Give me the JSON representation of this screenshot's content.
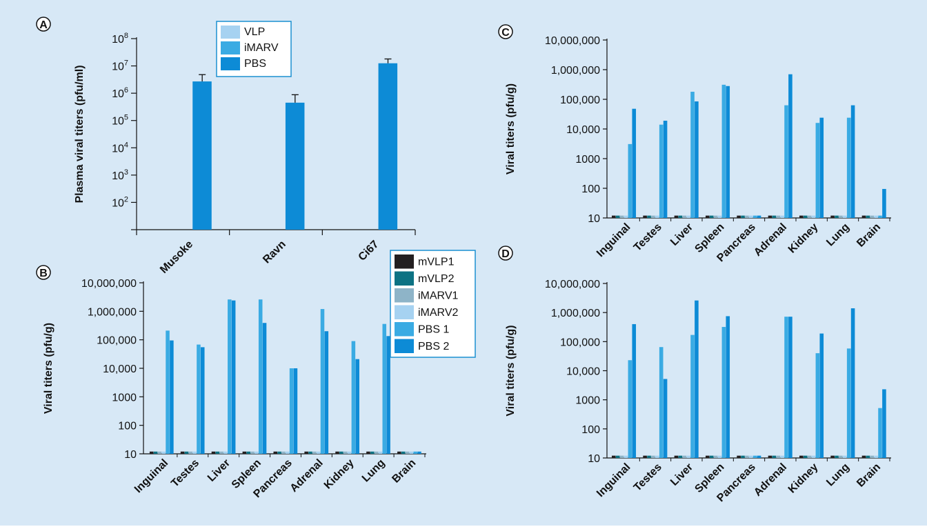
{
  "colors": {
    "background": "#d7e8f6",
    "mVLP1": "#231f20",
    "mVLP2": "#0d7283",
    "iMARV1": "#8eb4c8",
    "iMARV2": "#a6d2f1",
    "PBS 1": "#3aabe3",
    "PBS 2": "#0d8bd6",
    "VLP": "#a6d2f1",
    "iMARV": "#3aabe3",
    "PBS": "#0d8bd6"
  },
  "chart_data": [
    {
      "panel": "A",
      "type": "bar",
      "ylabel": "Plasma viral titers (pfu/ml)",
      "xlabel": "",
      "yscale": "log",
      "ylim": [
        10,
        100000000
      ],
      "yticks": [
        {
          "exp": "2",
          "value": 100
        },
        {
          "exp": "3",
          "value": 1000
        },
        {
          "exp": "4",
          "value": 10000
        },
        {
          "exp": "5",
          "value": 100000
        },
        {
          "exp": "6",
          "value": 1000000
        },
        {
          "exp": "7",
          "value": 10000000
        },
        {
          "exp": "8",
          "value": 100000000
        }
      ],
      "tick_base": "10",
      "categories": [
        "Musoke",
        "Ravn",
        "Ci67"
      ],
      "legend": [
        "VLP",
        "iMARV",
        "PBS"
      ],
      "series": [
        {
          "name": "VLP",
          "values": [
            10,
            10,
            10
          ]
        },
        {
          "name": "iMARV",
          "values": [
            10,
            10,
            10
          ]
        },
        {
          "name": "PBS",
          "values": [
            2700000,
            450000,
            12500000
          ],
          "error_upper": [
            4800000,
            880000,
            18000000
          ]
        }
      ]
    },
    {
      "panel": "B",
      "type": "bar",
      "ylabel": "Viral titers (pfu/g)",
      "xlabel": "",
      "yscale": "log",
      "ylim": [
        10,
        10000000
      ],
      "yticks": [
        "10",
        "100",
        "1000",
        "10,000",
        "100,000",
        "1,000,000",
        "10,000,000"
      ],
      "categories": [
        "Inguinal",
        "Testes",
        "Liver",
        "Spleen",
        "Pancreas",
        "Adrenal",
        "Kidney",
        "Lung",
        "Brain"
      ],
      "legend": [
        "mVLP1",
        "mVLP2",
        "iMARV1",
        "iMARV2",
        "PBS 1",
        "PBS 2"
      ],
      "series": [
        {
          "name": "mVLP1",
          "values": [
            12,
            12,
            12,
            12,
            12,
            12,
            12,
            12,
            12
          ]
        },
        {
          "name": "mVLP2",
          "values": [
            12,
            12,
            12,
            12,
            12,
            12,
            12,
            12,
            12
          ]
        },
        {
          "name": "iMARV1",
          "values": [
            12,
            12,
            12,
            12,
            12,
            12,
            12,
            12,
            12
          ]
        },
        {
          "name": "iMARV2",
          "values": [
            12,
            12,
            12,
            12,
            12,
            12,
            12,
            12,
            12
          ]
        },
        {
          "name": "PBS 1",
          "values": [
            210000,
            68000,
            2600000,
            2600000,
            10000,
            1200000,
            90000,
            360000,
            12
          ]
        },
        {
          "name": "PBS 2",
          "values": [
            95000,
            55000,
            2400000,
            390000,
            10000,
            200000,
            21000,
            135000,
            12
          ]
        }
      ]
    },
    {
      "panel": "C",
      "type": "bar",
      "ylabel": "Viral titers (pfu/g)",
      "xlabel": "",
      "yscale": "log",
      "ylim": [
        10,
        10000000
      ],
      "yticks": [
        "10",
        "100",
        "1000",
        "10,000",
        "100,000",
        "1,000,000",
        "10,000,000"
      ],
      "categories": [
        "Inguinal",
        "Testes",
        "Liver",
        "Spleen",
        "Pancreas",
        "Adrenal",
        "Kidney",
        "Lung",
        "Brain"
      ],
      "series": [
        {
          "name": "mVLP1",
          "values": [
            12,
            12,
            12,
            12,
            12,
            12,
            12,
            12,
            12
          ]
        },
        {
          "name": "mVLP2",
          "values": [
            12,
            12,
            12,
            12,
            12,
            12,
            12,
            12,
            12
          ]
        },
        {
          "name": "iMARV1",
          "values": [
            12,
            12,
            12,
            12,
            12,
            12,
            12,
            12,
            12
          ]
        },
        {
          "name": "iMARV2",
          "values": [
            12,
            12,
            12,
            12,
            12,
            12,
            12,
            12,
            12
          ]
        },
        {
          "name": "PBS 1",
          "values": [
            3100,
            14000,
            180000,
            310000,
            12,
            63000,
            16000,
            24000,
            12
          ]
        },
        {
          "name": "PBS 2",
          "values": [
            48000,
            19000,
            85000,
            280000,
            12,
            700000,
            24000,
            63000,
            95
          ]
        }
      ]
    },
    {
      "panel": "D",
      "type": "bar",
      "ylabel": "Viral titers (pfu/g)",
      "xlabel": "",
      "yscale": "log",
      "ylim": [
        10,
        10000000
      ],
      "yticks": [
        "10",
        "100",
        "1000",
        "10,000",
        "100,000",
        "1,000,000",
        "10,000,000"
      ],
      "categories": [
        "Inguinal",
        "Testes",
        "Liver",
        "Spleen",
        "Pancreas",
        "Adrenal",
        "Kidney",
        "Lung",
        "Brain"
      ],
      "series": [
        {
          "name": "mVLP1",
          "values": [
            12,
            12,
            12,
            12,
            12,
            12,
            12,
            12,
            12
          ]
        },
        {
          "name": "mVLP2",
          "values": [
            12,
            12,
            12,
            12,
            12,
            12,
            12,
            12,
            12
          ]
        },
        {
          "name": "iMARV1",
          "values": [
            12,
            12,
            12,
            12,
            12,
            12,
            12,
            12,
            12
          ]
        },
        {
          "name": "iMARV2",
          "values": [
            12,
            12,
            12,
            12,
            12,
            12,
            12,
            12,
            12
          ]
        },
        {
          "name": "PBS 1",
          "values": [
            23000,
            65000,
            170000,
            320000,
            12,
            720000,
            40000,
            58000,
            520
          ]
        },
        {
          "name": "PBS 2",
          "values": [
            400000,
            5200,
            2600000,
            750000,
            12,
            720000,
            190000,
            1400000,
            2300
          ]
        }
      ]
    }
  ]
}
